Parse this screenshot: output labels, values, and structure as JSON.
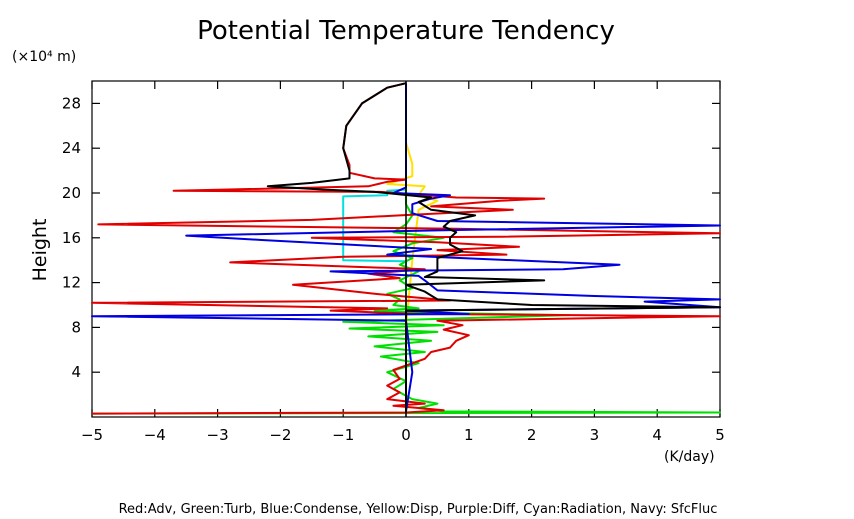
{
  "chart_data": {
    "type": "line",
    "title": "Potential Temperature Tendency",
    "ylabel": "Height",
    "yunit": "(×10⁴ m)",
    "xunit": "(K/day)",
    "xlim": [
      -5,
      5
    ],
    "ylim": [
      0,
      30
    ],
    "xticks": [
      -5,
      -4,
      -3,
      -2,
      -1,
      0,
      1,
      2,
      3,
      4,
      5
    ],
    "xtick_labels": [
      "−5",
      "−4",
      "−3",
      "−2",
      "−1",
      "0",
      "1",
      "2",
      "3",
      "4",
      "5"
    ],
    "yticks": [
      4,
      8,
      12,
      16,
      20,
      24,
      28
    ],
    "ytick_labels": [
      "4",
      "8",
      "12",
      "16",
      "20",
      "24",
      "28"
    ],
    "legend_text": "Red:Adv, Green:Turb, Blue:Condense, Yellow:Disp, Purple:Diff, Cyan:Radiation, Navy: SfcFluc",
    "series": [
      {
        "color": "#00e0e0",
        "points": [
          [
            0,
            0.5
          ],
          [
            0,
            13.9
          ],
          [
            -1,
            14
          ],
          [
            -1,
            19.7
          ],
          [
            -0.3,
            19.8
          ],
          [
            -0.3,
            20.2
          ],
          [
            0,
            20.3
          ],
          [
            0,
            29.8
          ]
        ]
      },
      {
        "color": "#ffe000",
        "points": [
          [
            0,
            0.5
          ],
          [
            0,
            8
          ],
          [
            0.1,
            14
          ],
          [
            0.2,
            18.5
          ],
          [
            0.5,
            19.3
          ],
          [
            0.2,
            19.8
          ],
          [
            0.3,
            20.6
          ],
          [
            -0.3,
            20.8
          ],
          [
            0.1,
            21.5
          ],
          [
            0.1,
            22.6
          ],
          [
            0,
            24.5
          ],
          [
            0,
            29.8
          ]
        ]
      },
      {
        "color": "#00e000",
        "points": [
          [
            -5,
            0.3
          ],
          [
            5,
            0.4
          ],
          [
            0.6,
            0.5
          ],
          [
            0.2,
            0.8
          ],
          [
            0.5,
            1.2
          ],
          [
            0.1,
            1.6
          ],
          [
            -0.2,
            2.5
          ],
          [
            0,
            3.2
          ],
          [
            -0.3,
            4
          ],
          [
            0.2,
            4.8
          ],
          [
            -0.4,
            5.4
          ],
          [
            0.3,
            5.8
          ],
          [
            -0.5,
            6.3
          ],
          [
            0.4,
            6.8
          ],
          [
            -0.6,
            7.2
          ],
          [
            0.5,
            7.6
          ],
          [
            -0.9,
            7.9
          ],
          [
            0.6,
            8.2
          ],
          [
            -1.0,
            8.5
          ],
          [
            0.8,
            8.8
          ],
          [
            2.6,
            9.1
          ],
          [
            0.3,
            9.3
          ],
          [
            -0.5,
            9.5
          ],
          [
            0.2,
            9.7
          ],
          [
            -0.2,
            10
          ],
          [
            -0.1,
            10.5
          ],
          [
            -0.3,
            11
          ],
          [
            0.1,
            11.5
          ],
          [
            -0.1,
            12.2
          ],
          [
            0.2,
            13
          ],
          [
            -0.1,
            13.6
          ],
          [
            0.1,
            14.2
          ],
          [
            -0.2,
            14.8
          ],
          [
            0.1,
            15.5
          ],
          [
            0.6,
            16
          ],
          [
            -0.2,
            16.5
          ],
          [
            0,
            17.2
          ],
          [
            0.1,
            18
          ],
          [
            0,
            19
          ],
          [
            0,
            20.5
          ],
          [
            0,
            22
          ],
          [
            0,
            29.8
          ]
        ]
      },
      {
        "color": "#e00000",
        "points": [
          [
            -5,
            0.3
          ],
          [
            0,
            0.4
          ],
          [
            0.6,
            0.6
          ],
          [
            -0.2,
            1.0
          ],
          [
            0.3,
            1.2
          ],
          [
            -0.3,
            1.6
          ],
          [
            -0.1,
            2.2
          ],
          [
            -0.3,
            2.8
          ],
          [
            -0.1,
            3.4
          ],
          [
            -0.2,
            4.2
          ],
          [
            0.3,
            5.2
          ],
          [
            0.4,
            5.8
          ],
          [
            0.7,
            6.2
          ],
          [
            0.8,
            6.8
          ],
          [
            1.0,
            7.3
          ],
          [
            0.6,
            7.8
          ],
          [
            0.9,
            8.2
          ],
          [
            0.5,
            8.6
          ],
          [
            5,
            9.0
          ],
          [
            0.2,
            9.2
          ],
          [
            -1.2,
            9.5
          ],
          [
            -0.3,
            9.7
          ],
          [
            -5,
            10.2
          ],
          [
            0.7,
            10.4
          ],
          [
            -0.5,
            11
          ],
          [
            -1.8,
            11.8
          ],
          [
            -0.1,
            12.4
          ],
          [
            -0.6,
            12.8
          ],
          [
            0.3,
            13.2
          ],
          [
            -2.8,
            13.8
          ],
          [
            -1,
            14.3
          ],
          [
            1.6,
            14.5
          ],
          [
            0.5,
            14.9
          ],
          [
            1.8,
            15.2
          ],
          [
            0.5,
            15.6
          ],
          [
            -1.5,
            16
          ],
          [
            1.5,
            16.1
          ],
          [
            5,
            16.4
          ],
          [
            0.8,
            16.8
          ],
          [
            -4.9,
            17.2
          ],
          [
            -1.5,
            17.6
          ],
          [
            -0.1,
            18
          ],
          [
            1.7,
            18.5
          ],
          [
            0.4,
            18.8
          ],
          [
            1.5,
            19.3
          ],
          [
            2.2,
            19.5
          ],
          [
            0.8,
            19.6
          ],
          [
            -0.4,
            20.1
          ],
          [
            -3.7,
            20.2
          ],
          [
            -0.6,
            20.6
          ],
          [
            -0.3,
            21.0
          ],
          [
            0,
            21.2
          ],
          [
            -0.5,
            21.3
          ],
          [
            -0.9,
            21.8
          ],
          [
            -0.9,
            22.5
          ],
          [
            -1.0,
            24
          ],
          [
            -0.95,
            26
          ],
          [
            -0.7,
            28
          ],
          [
            -0.3,
            29.4
          ],
          [
            0,
            29.8
          ]
        ]
      },
      {
        "color": "#0000e0",
        "points": [
          [
            0,
            0.5
          ],
          [
            0.1,
            4
          ],
          [
            0,
            8.6
          ],
          [
            -5,
            9.0
          ],
          [
            1.0,
            9.2
          ],
          [
            0,
            9.5
          ],
          [
            5,
            9.8
          ],
          [
            3.8,
            10.3
          ],
          [
            5,
            10.5
          ],
          [
            3,
            10.8
          ],
          [
            0.5,
            11.3
          ],
          [
            0.3,
            12.2
          ],
          [
            0.2,
            12.6
          ],
          [
            -1.2,
            13.0
          ],
          [
            2.5,
            13.2
          ],
          [
            3.4,
            13.6
          ],
          [
            0.4,
            14.3
          ],
          [
            -0.3,
            14.5
          ],
          [
            0.4,
            15
          ],
          [
            -2.3,
            15.8
          ],
          [
            -3.5,
            16.2
          ],
          [
            0.8,
            16.7
          ],
          [
            5,
            17.1
          ],
          [
            0.5,
            17.5
          ],
          [
            0.1,
            18.2
          ],
          [
            0.1,
            19
          ],
          [
            0.4,
            19.5
          ],
          [
            0.7,
            19.8
          ],
          [
            -0.2,
            20.0
          ],
          [
            0,
            20.5
          ],
          [
            0,
            29.8
          ]
        ]
      },
      {
        "color": "#000000",
        "points": [
          [
            0,
            0.4
          ],
          [
            0,
            9.3
          ],
          [
            0,
            9.5
          ],
          [
            5,
            9.8
          ],
          [
            2,
            10.0
          ],
          [
            0.5,
            10.5
          ],
          [
            0.3,
            11.2
          ],
          [
            0,
            11.8
          ],
          [
            2.2,
            12.2
          ],
          [
            0.3,
            12.5
          ],
          [
            0.5,
            13.0
          ],
          [
            0.5,
            13.6
          ],
          [
            0.5,
            14.2
          ],
          [
            0.9,
            14.8
          ],
          [
            0.7,
            15.4
          ],
          [
            0.7,
            16
          ],
          [
            0.8,
            16.5
          ],
          [
            0.6,
            17
          ],
          [
            0.7,
            17.5
          ],
          [
            1.1,
            18
          ],
          [
            0.4,
            18.5
          ],
          [
            0.2,
            19.2
          ],
          [
            0.4,
            19.6
          ],
          [
            -0.5,
            20.1
          ],
          [
            -1.3,
            20.3
          ],
          [
            -2.2,
            20.6
          ],
          [
            -1.5,
            20.9
          ],
          [
            -0.9,
            21.3
          ],
          [
            -0.9,
            22
          ],
          [
            -1.0,
            24
          ],
          [
            -0.95,
            26
          ],
          [
            -0.7,
            28
          ],
          [
            -0.3,
            29.4
          ],
          [
            0,
            29.8
          ]
        ]
      }
    ]
  }
}
